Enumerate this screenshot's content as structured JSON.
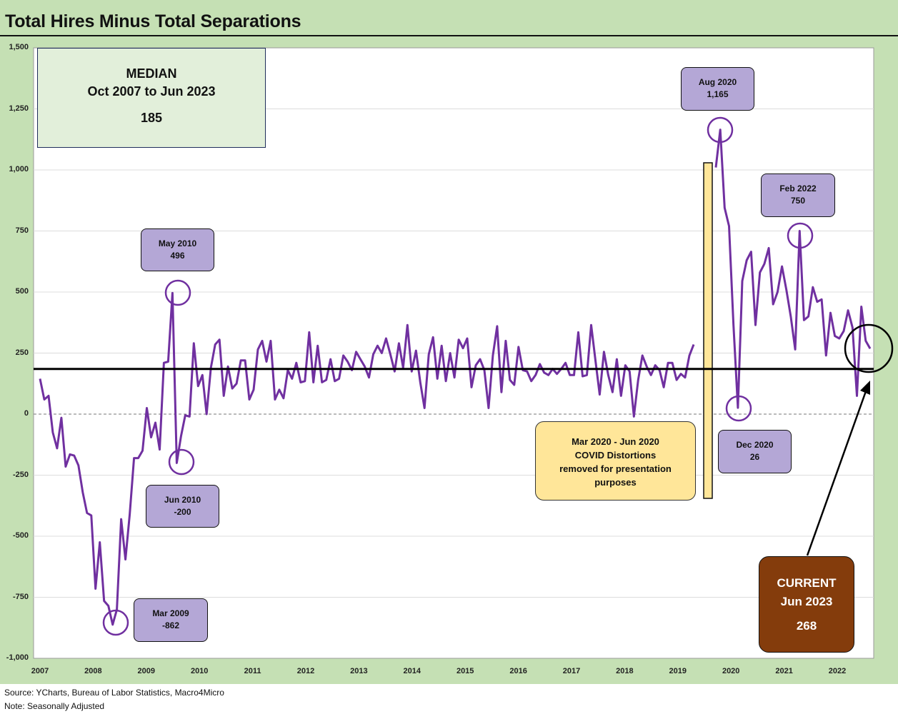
{
  "title": "Total Hires Minus Total Separations",
  "footer": {
    "source": "Source: YCharts, Bureau of Labor Statistics, Macro4Micro",
    "note": "Note: Seasonally Adjusted"
  },
  "median_box": {
    "line1": "MEDIAN",
    "line2": "Oct 2007 to Jun 2023",
    "value": "185"
  },
  "covid_box": {
    "line1": "Mar 2020 - Jun 2020",
    "line2": "COVID Distortions",
    "line3": "removed for presentation",
    "line4": "purposes"
  },
  "current_box": {
    "line1": "CURRENT",
    "line2": "Jun 2023",
    "value": "268"
  },
  "callouts": [
    {
      "date": "May 2010",
      "value": "496"
    },
    {
      "date": "Jun 2010",
      "value": "-200"
    },
    {
      "date": "Mar 2009",
      "value": "-862"
    },
    {
      "date": "Aug 2020",
      "value": "1,165"
    },
    {
      "date": "Feb 2022",
      "value": "750"
    },
    {
      "date": "Dec 2020",
      "value": "26"
    }
  ],
  "colors": {
    "background": "#c5e0b4",
    "line": "#7030a0",
    "callout": "#b4a7d6",
    "covid": "#ffe699",
    "current": "#843c0c"
  },
  "chart_data": {
    "type": "line",
    "title": "Total Hires Minus Total Separations",
    "ylim": [
      -1000,
      1500
    ],
    "y_ticks": [
      1500,
      1250,
      1000,
      750,
      500,
      250,
      0,
      -250,
      -500,
      -750,
      -1000
    ],
    "y_tick_labels": [
      "1,500",
      "1,250",
      "1,000",
      "750",
      "500",
      "250",
      "0",
      "-250",
      "-500",
      "-750",
      "-1,000"
    ],
    "x_tick_labels": [
      "2007",
      "2008",
      "2009",
      "2010",
      "2011",
      "2012",
      "2013",
      "2014",
      "2015",
      "2016",
      "2017",
      "2018",
      "2019",
      "2020",
      "2021",
      "2022"
    ],
    "median": 185,
    "grid": true,
    "zero_line": "dashed",
    "series": [
      {
        "values_pre_covid": [
          145,
          60,
          75,
          -75,
          -140,
          -15,
          -215,
          -165,
          -170,
          -210,
          -320,
          -405,
          -415,
          -715,
          -525,
          -765,
          -785,
          -862,
          -800,
          -430,
          -595,
          -410,
          -180,
          -180,
          -150,
          25,
          -95,
          -35,
          -145,
          210,
          215,
          496,
          -200,
          -90,
          -5,
          -10,
          290,
          115,
          160,
          0,
          190,
          285,
          305,
          75,
          195,
          105,
          125,
          220,
          220,
          60,
          100,
          265,
          300,
          215,
          300,
          60,
          100,
          65,
          180,
          145,
          210,
          130,
          135,
          335,
          130,
          280,
          130,
          140,
          225,
          135,
          145,
          240,
          215,
          180,
          255,
          225,
          195,
          150,
          245,
          280,
          250,
          310,
          245,
          175,
          290,
          190,
          365,
          175,
          260,
          130,
          25,
          245,
          315,
          145,
          280,
          135,
          250,
          150,
          305,
          270,
          310,
          110,
          200,
          225,
          180,
          25,
          240,
          360,
          90,
          300,
          140,
          120,
          275,
          180,
          175,
          135,
          160,
          205,
          170,
          160,
          185,
          165,
          185,
          210,
          160,
          160,
          335,
          155,
          160,
          365,
          220,
          80,
          255,
          160,
          90,
          225,
          75,
          200,
          175,
          -10,
          140,
          240,
          195,
          160,
          200,
          180,
          110,
          210,
          210,
          140,
          165,
          150,
          240,
          285
        ],
        "values_post_covid": [
          1010,
          1165,
          845,
          770,
          365,
          26,
          545,
          630,
          665,
          365,
          580,
          615,
          680,
          450,
          500,
          605,
          510,
          400,
          265,
          750,
          385,
          400,
          520,
          460,
          470,
          240,
          415,
          320,
          310,
          340,
          425,
          355,
          75,
          440,
          300,
          268
        ]
      }
    ]
  }
}
